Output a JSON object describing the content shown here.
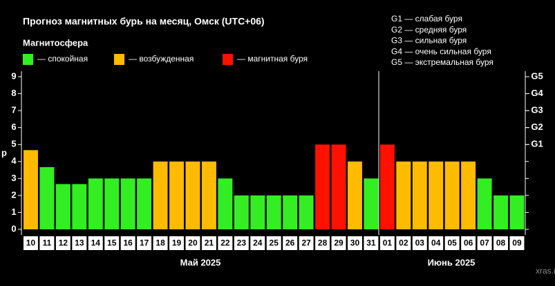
{
  "chart_data": {
    "type": "bar",
    "title": "Прогноз магнитных бурь на месяц, Омск (UTC+06)",
    "legend_title": "Магнитосфера",
    "legend": [
      {
        "name": "— спокойная",
        "color": "#33ee22"
      },
      {
        "name": "— возбужденная",
        "color": "#ffbb00"
      },
      {
        "name": "— магнитная буря",
        "color": "#ff1100"
      }
    ],
    "g_scale": [
      "G1 — слабая буря",
      "G2 — средняя буря",
      "G3 — сильная буря",
      "G4 — очень сильная буря",
      "G5 — экстремальная буря"
    ],
    "ylabel": "p",
    "categories": [
      "10",
      "11",
      "12",
      "13",
      "14",
      "15",
      "16",
      "17",
      "18",
      "19",
      "20",
      "21",
      "22",
      "23",
      "24",
      "25",
      "26",
      "27",
      "28",
      "29",
      "30",
      "31",
      "01",
      "02",
      "03",
      "04",
      "05",
      "06",
      "07",
      "08",
      "09"
    ],
    "months": [
      "Май 2025",
      "Июнь 2025"
    ],
    "values": [
      4.67,
      3.67,
      2.67,
      2.67,
      3,
      3,
      3,
      3,
      4,
      4,
      4,
      4,
      3,
      2,
      2,
      2,
      2,
      2,
      5,
      5,
      4,
      3,
      5,
      4,
      4,
      4,
      4,
      4,
      3,
      2,
      2
    ],
    "colors": [
      "#ffbb00",
      "#33ee22",
      "#33ee22",
      "#33ee22",
      "#33ee22",
      "#33ee22",
      "#33ee22",
      "#33ee22",
      "#ffbb00",
      "#ffbb00",
      "#ffbb00",
      "#ffbb00",
      "#33ee22",
      "#33ee22",
      "#33ee22",
      "#33ee22",
      "#33ee22",
      "#33ee22",
      "#ff1100",
      "#ff1100",
      "#ffbb00",
      "#33ee22",
      "#ff1100",
      "#ffbb00",
      "#ffbb00",
      "#ffbb00",
      "#ffbb00",
      "#ffbb00",
      "#33ee22",
      "#33ee22",
      "#33ee22"
    ],
    "ylim": [
      0,
      9
    ],
    "yticks": [
      0,
      1,
      2,
      3,
      4,
      5,
      6,
      7,
      8,
      9
    ],
    "y2lim": [
      0,
      9
    ],
    "y2ticks": [
      {
        "value": 5,
        "label": "G1"
      },
      {
        "value": 6,
        "label": "G2"
      },
      {
        "value": 7,
        "label": "G3"
      },
      {
        "value": 8,
        "label": "G4"
      },
      {
        "value": 9,
        "label": "G5"
      }
    ],
    "watermark": "xras.ru"
  }
}
